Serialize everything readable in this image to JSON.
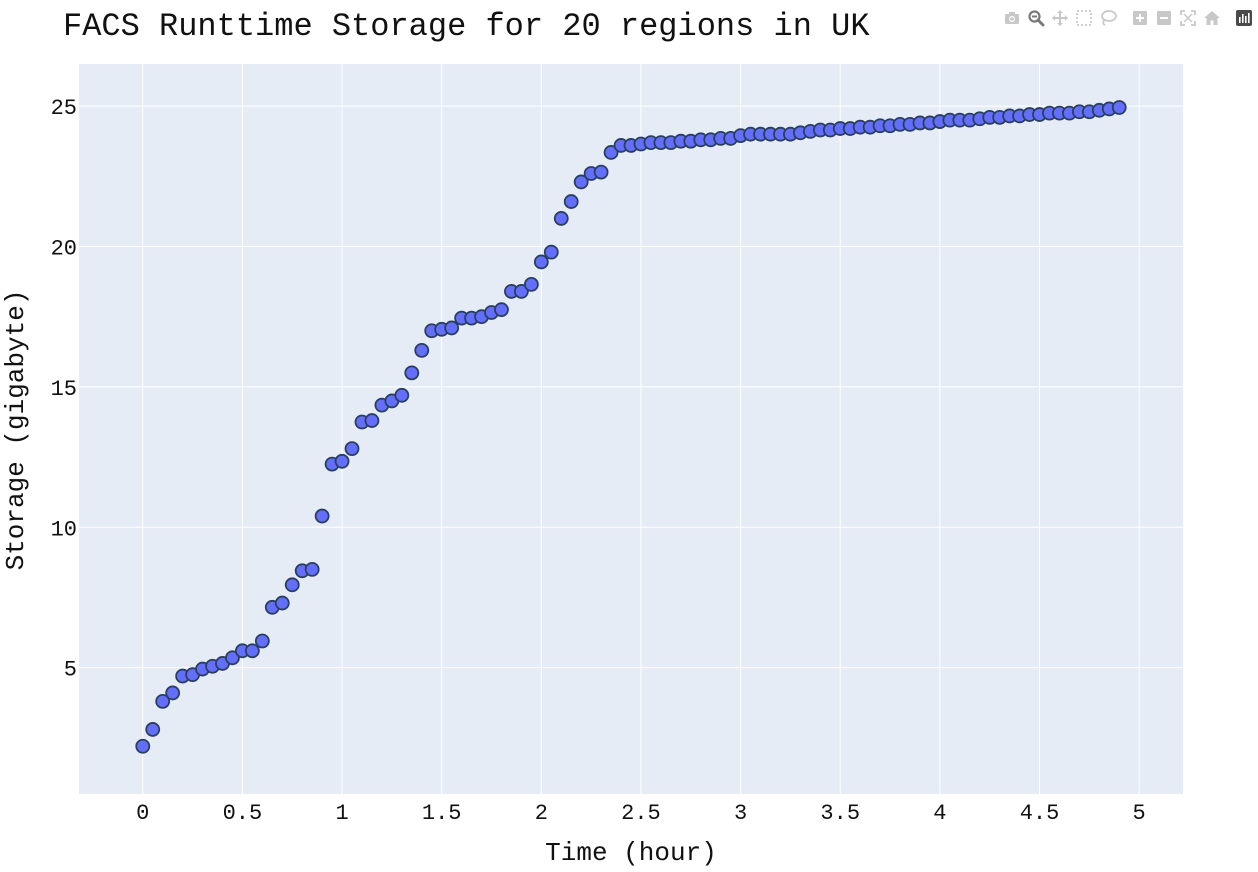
{
  "modebar": {
    "buttons": [
      {
        "icon": "camera-icon"
      },
      {
        "icon": "zoom-icon"
      },
      {
        "icon": "pan-icon"
      },
      {
        "icon": "box-select-icon"
      },
      {
        "icon": "lasso-select-icon"
      },
      {
        "icon": "zoom-in-icon"
      },
      {
        "icon": "zoom-out-icon"
      },
      {
        "icon": "autoscale-icon"
      },
      {
        "icon": "reset-axes-icon"
      },
      {
        "icon": "plotly-logo-icon"
      }
    ]
  },
  "chart_data": {
    "type": "scatter",
    "title": "FACS Runttime Storage for 20 regions in UK",
    "xlabel": "Time (hour)",
    "ylabel": "Storage (gigabyte)",
    "xlim": [
      -0.32,
      5.22
    ],
    "ylim": [
      0.5,
      26.5
    ],
    "xticks": [
      0,
      0.5,
      1,
      1.5,
      2,
      2.5,
      3,
      3.5,
      4,
      4.5,
      5
    ],
    "xtick_labels": [
      "0",
      "0.5",
      "1",
      "1.5",
      "2",
      "2.5",
      "3",
      "3.5",
      "4",
      "4.5",
      "5"
    ],
    "yticks": [
      5,
      10,
      15,
      20,
      25
    ],
    "ytick_labels": [
      "5",
      "10",
      "15",
      "20",
      "25"
    ],
    "grid": true,
    "marker_color": "#636efa",
    "marker_edge_color": "#2a3f5f",
    "plot_bgcolor": "#e5ecf6",
    "x": [
      0,
      0.05,
      0.1,
      0.15,
      0.2,
      0.25,
      0.3,
      0.35,
      0.4,
      0.45,
      0.5,
      0.55,
      0.6,
      0.65,
      0.7,
      0.75,
      0.8,
      0.85,
      0.9,
      0.95,
      1,
      1.05,
      1.1,
      1.15,
      1.2,
      1.25,
      1.3,
      1.35,
      1.4,
      1.45,
      1.5,
      1.55,
      1.6,
      1.65,
      1.7,
      1.75,
      1.8,
      1.85,
      1.9,
      1.95,
      2,
      2.05,
      2.1,
      2.15,
      2.2,
      2.25,
      2.3,
      2.35,
      2.4,
      2.45,
      2.5,
      2.55,
      2.6,
      2.65,
      2.7,
      2.75,
      2.8,
      2.85,
      2.9,
      2.95,
      3,
      3.05,
      3.1,
      3.15,
      3.2,
      3.25,
      3.3,
      3.35,
      3.4,
      3.45,
      3.5,
      3.55,
      3.6,
      3.65,
      3.7,
      3.75,
      3.8,
      3.85,
      3.9,
      3.95,
      4,
      4.05,
      4.1,
      4.15,
      4.2,
      4.25,
      4.3,
      4.35,
      4.4,
      4.45,
      4.5,
      4.55,
      4.6,
      4.65,
      4.7,
      4.75,
      4.8,
      4.85,
      4.9
    ],
    "y": [
      2.2,
      2.8,
      3.8,
      4.1,
      4.7,
      4.75,
      4.95,
      5.05,
      5.15,
      5.35,
      5.6,
      5.6,
      5.95,
      7.15,
      7.3,
      7.95,
      8.45,
      8.5,
      10.4,
      12.25,
      12.35,
      12.8,
      13.75,
      13.8,
      14.35,
      14.5,
      14.7,
      15.5,
      16.3,
      17.0,
      17.05,
      17.1,
      17.45,
      17.45,
      17.5,
      17.65,
      17.75,
      18.4,
      18.4,
      18.65,
      19.45,
      19.8,
      21.0,
      21.6,
      22.3,
      22.6,
      22.65,
      23.35,
      23.6,
      23.6,
      23.65,
      23.7,
      23.7,
      23.7,
      23.75,
      23.75,
      23.8,
      23.8,
      23.85,
      23.85,
      23.95,
      24.0,
      24.0,
      24.0,
      24.0,
      24.0,
      24.05,
      24.1,
      24.15,
      24.15,
      24.2,
      24.2,
      24.25,
      24.25,
      24.3,
      24.3,
      24.35,
      24.35,
      24.4,
      24.4,
      24.45,
      24.5,
      24.5,
      24.5,
      24.55,
      24.6,
      24.6,
      24.65,
      24.65,
      24.7,
      24.7,
      24.75,
      24.75,
      24.75,
      24.8,
      24.8,
      24.85,
      24.9,
      24.95
    ]
  }
}
